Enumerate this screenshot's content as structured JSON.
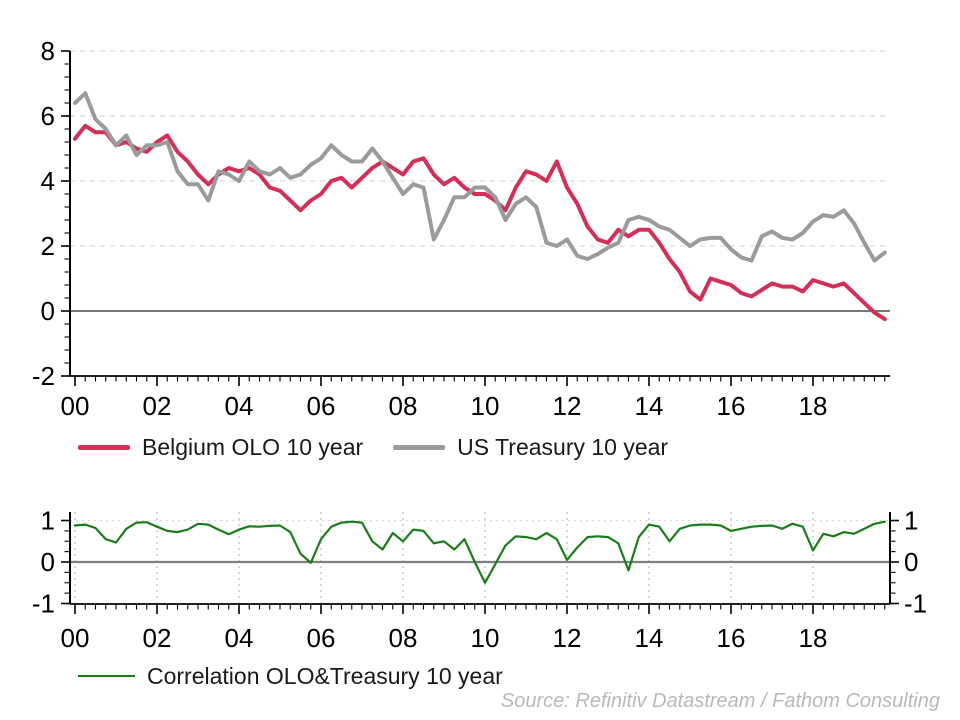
{
  "source_note": "Source: Refinitiv Datastream / Fathom Consulting",
  "colors": {
    "background": "#ffffff",
    "grid": "#d9d9d9",
    "vgrid": "#bdbdbd",
    "axis": "#000000",
    "zero_line_top": "#4a4a4a",
    "zero_line_bottom": "#7f7f7f",
    "tick_label": "#000000",
    "legend_text": "#1a1a1a",
    "source_text": "#b9b9b9",
    "belgium_olo": "#d23059",
    "us_treasury": "#9b9b9b",
    "correlation": "#1a7d1a"
  },
  "chart_data": [
    {
      "type": "line",
      "x_tick_labels": [
        "00",
        "02",
        "04",
        "06",
        "08",
        "10",
        "12",
        "14",
        "16",
        "18"
      ],
      "x_label_years": [
        2000,
        2002,
        2004,
        2006,
        2008,
        2010,
        2012,
        2014,
        2016,
        2018
      ],
      "x_range": [
        2000,
        2019.9
      ],
      "ylim": [
        -2,
        8
      ],
      "y_ticks": [
        8,
        6,
        4,
        2,
        0,
        -2
      ],
      "grid_values": [
        8,
        6,
        4,
        2
      ],
      "zero_line_value": 0,
      "grid": "horizontal-dashed",
      "legend_position": "below",
      "series": [
        {
          "name": "Belgium OLO 10 year",
          "color": "#d23059",
          "width": 4,
          "start_year": 2000,
          "step_years": 0.25,
          "values": [
            5.3,
            5.7,
            5.5,
            5.5,
            5.1,
            5.2,
            5.0,
            4.9,
            5.2,
            5.4,
            4.9,
            4.6,
            4.2,
            3.9,
            4.2,
            4.4,
            4.3,
            4.4,
            4.2,
            3.8,
            3.7,
            3.4,
            3.1,
            3.4,
            3.6,
            4.0,
            4.1,
            3.8,
            4.1,
            4.4,
            4.6,
            4.4,
            4.2,
            4.6,
            4.7,
            4.2,
            3.9,
            4.1,
            3.8,
            3.6,
            3.6,
            3.4,
            3.1,
            3.8,
            4.3,
            4.2,
            4.0,
            4.6,
            3.8,
            3.3,
            2.6,
            2.2,
            2.1,
            2.5,
            2.3,
            2.5,
            2.5,
            2.1,
            1.6,
            1.2,
            0.6,
            0.35,
            1.0,
            0.9,
            0.8,
            0.55,
            0.45,
            0.65,
            0.85,
            0.75,
            0.75,
            0.6,
            0.95,
            0.85,
            0.75,
            0.85,
            0.55,
            0.25,
            -0.05,
            -0.25
          ]
        },
        {
          "name": "US Treasury 10 year",
          "color": "#9b9b9b",
          "width": 4,
          "start_year": 2000,
          "step_years": 0.25,
          "values": [
            6.4,
            6.7,
            5.9,
            5.6,
            5.1,
            5.4,
            4.8,
            5.1,
            5.1,
            5.2,
            4.3,
            3.9,
            3.9,
            3.4,
            4.3,
            4.2,
            4.0,
            4.6,
            4.3,
            4.2,
            4.4,
            4.1,
            4.2,
            4.5,
            4.7,
            5.1,
            4.8,
            4.6,
            4.6,
            5.0,
            4.6,
            4.1,
            3.6,
            3.9,
            3.8,
            2.2,
            2.8,
            3.5,
            3.5,
            3.8,
            3.8,
            3.5,
            2.8,
            3.3,
            3.5,
            3.2,
            2.1,
            2.0,
            2.2,
            1.7,
            1.6,
            1.75,
            1.95,
            2.1,
            2.8,
            2.9,
            2.8,
            2.6,
            2.5,
            2.25,
            2.0,
            2.2,
            2.25,
            2.25,
            1.9,
            1.65,
            1.55,
            2.3,
            2.45,
            2.25,
            2.2,
            2.4,
            2.75,
            2.95,
            2.9,
            3.1,
            2.7,
            2.1,
            1.55,
            1.8
          ]
        }
      ]
    },
    {
      "type": "line",
      "x_tick_labels": [
        "00",
        "02",
        "04",
        "06",
        "08",
        "10",
        "12",
        "14",
        "16",
        "18"
      ],
      "x_label_years": [
        2000,
        2002,
        2004,
        2006,
        2008,
        2010,
        2012,
        2014,
        2016,
        2018
      ],
      "x_range": [
        2000,
        2019.9
      ],
      "ylim": [
        -1,
        1.2
      ],
      "y_ticks": [
        1,
        0,
        -1
      ],
      "grid_values": [
        1
      ],
      "vgrid_years": [
        2000,
        2002,
        2004,
        2006,
        2008,
        2010,
        2012,
        2014,
        2016,
        2018
      ],
      "zero_line_value": 0,
      "grid": "dotted",
      "legend_position": "below",
      "series": [
        {
          "name": "Correlation OLO&Treasury 10 year",
          "color": "#1a7d1a",
          "width": 2.2,
          "start_year": 2000,
          "step_years": 0.25,
          "values": [
            0.88,
            0.9,
            0.82,
            0.55,
            0.47,
            0.8,
            0.95,
            0.96,
            0.85,
            0.75,
            0.72,
            0.78,
            0.92,
            0.9,
            0.78,
            0.67,
            0.78,
            0.86,
            0.85,
            0.87,
            0.88,
            0.72,
            0.2,
            -0.02,
            0.55,
            0.85,
            0.95,
            0.97,
            0.95,
            0.5,
            0.3,
            0.7,
            0.5,
            0.78,
            0.75,
            0.45,
            0.5,
            0.3,
            0.55,
            0.0,
            -0.5,
            -0.05,
            0.4,
            0.62,
            0.6,
            0.55,
            0.7,
            0.55,
            0.05,
            0.35,
            0.6,
            0.62,
            0.6,
            0.45,
            -0.2,
            0.6,
            0.9,
            0.85,
            0.5,
            0.8,
            0.88,
            0.9,
            0.9,
            0.88,
            0.75,
            0.8,
            0.85,
            0.87,
            0.88,
            0.8,
            0.92,
            0.85,
            0.28,
            0.68,
            0.62,
            0.72,
            0.68,
            0.8,
            0.92,
            0.97
          ]
        }
      ]
    }
  ]
}
